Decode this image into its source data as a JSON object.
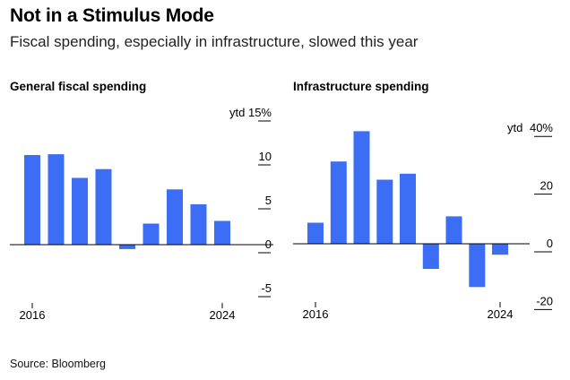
{
  "title": "Not in a Stimulus Mode",
  "subtitle": "Fiscal spending, especially in infrastructure, slowed this year",
  "source": "Source: Bloomberg",
  "colors": {
    "bar": "#3b6ef5",
    "axis": "#000000",
    "text": "#000000"
  },
  "chart_data": [
    {
      "type": "bar",
      "title": "General fiscal spending",
      "y_unit_label": "ytd",
      "x": [
        "2016",
        "2017",
        "2018",
        "2019",
        "2020",
        "2021",
        "2022",
        "2023",
        "2024"
      ],
      "x_tick_labels": [
        "2016",
        "2024"
      ],
      "values": [
        10.2,
        10.3,
        7.6,
        8.6,
        -0.5,
        2.4,
        6.3,
        4.6,
        2.7
      ],
      "ylim": [
        -5.5,
        15
      ],
      "y_ticks": [
        15,
        10,
        5,
        0,
        -5
      ],
      "y_tick_labels": [
        "15%",
        "10",
        "5",
        "0",
        "-5"
      ],
      "grid": false
    },
    {
      "type": "bar",
      "title": "Infrastructure spending",
      "y_unit_label": "ytd",
      "x": [
        "2016",
        "2017",
        "2018",
        "2019",
        "2020",
        "2021",
        "2022",
        "2023",
        "2024"
      ],
      "x_tick_labels": [
        "2016",
        "2024"
      ],
      "values": [
        7.3,
        28.5,
        39.0,
        22.2,
        24.3,
        -8.7,
        9.5,
        -15.0,
        -3.8
      ],
      "ylim": [
        -21,
        40
      ],
      "y_ticks": [
        40,
        20,
        0,
        -20
      ],
      "y_tick_labels": [
        "40%",
        "20",
        "0",
        "-20"
      ],
      "grid": false
    }
  ]
}
